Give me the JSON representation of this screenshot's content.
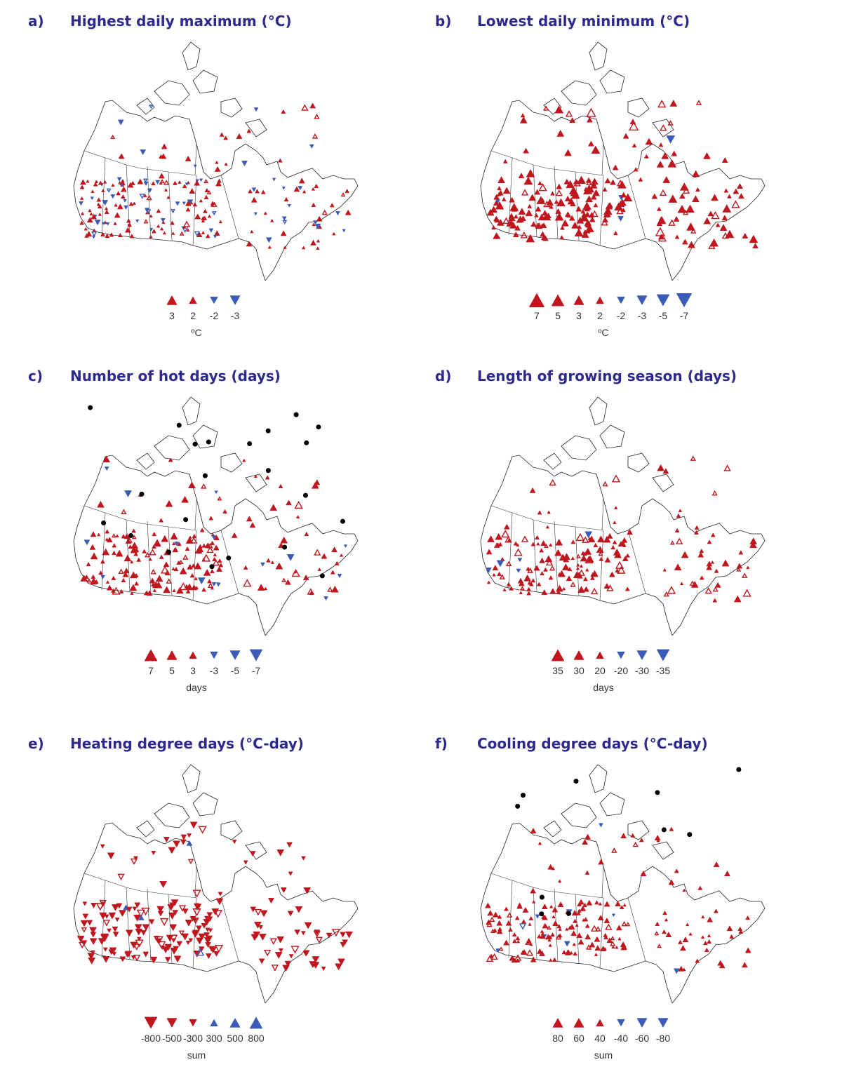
{
  "panels": [
    {
      "letter": "a)",
      "title": "Highest daily maximum (°C)",
      "unit": "ºC",
      "legend": [
        {
          "label": "3",
          "dir": "up",
          "color": "#c0161d",
          "size": 3
        },
        {
          "label": "2",
          "dir": "up",
          "color": "#c0161d",
          "size": 2
        },
        {
          "label": "-2",
          "dir": "down",
          "color": "#3a5bb7",
          "size": 2
        },
        {
          "label": "-3",
          "dir": "down",
          "color": "#3a5bb7",
          "size": 3
        }
      ]
    },
    {
      "letter": "b)",
      "title": "Lowest daily minimum (°C)",
      "unit": "ºC",
      "legend": [
        {
          "label": "7",
          "dir": "up",
          "color": "#c0161d",
          "size": 5
        },
        {
          "label": "5",
          "dir": "up",
          "color": "#c0161d",
          "size": 4
        },
        {
          "label": "3",
          "dir": "up",
          "color": "#c0161d",
          "size": 3
        },
        {
          "label": "2",
          "dir": "up",
          "color": "#c0161d",
          "size": 2
        },
        {
          "label": "-2",
          "dir": "down",
          "color": "#3a5bb7",
          "size": 2
        },
        {
          "label": "-3",
          "dir": "down",
          "color": "#3a5bb7",
          "size": 3
        },
        {
          "label": "-5",
          "dir": "down",
          "color": "#3a5bb7",
          "size": 4
        },
        {
          "label": "-7",
          "dir": "down",
          "color": "#3a5bb7",
          "size": 5
        }
      ]
    },
    {
      "letter": "c)",
      "title": "Number of hot days (days)",
      "unit": "days",
      "legend": [
        {
          "label": "7",
          "dir": "up",
          "color": "#c0161d",
          "size": 4
        },
        {
          "label": "5",
          "dir": "up",
          "color": "#c0161d",
          "size": 3
        },
        {
          "label": "3",
          "dir": "up",
          "color": "#c0161d",
          "size": 2
        },
        {
          "label": "-3",
          "dir": "down",
          "color": "#3a5bb7",
          "size": 2
        },
        {
          "label": "-5",
          "dir": "down",
          "color": "#3a5bb7",
          "size": 3
        },
        {
          "label": "-7",
          "dir": "down",
          "color": "#3a5bb7",
          "size": 4
        }
      ]
    },
    {
      "letter": "d)",
      "title": "Length of growing season (days)",
      "unit": "days",
      "legend": [
        {
          "label": "35",
          "dir": "up",
          "color": "#c0161d",
          "size": 4
        },
        {
          "label": "30",
          "dir": "up",
          "color": "#c0161d",
          "size": 3
        },
        {
          "label": "20",
          "dir": "up",
          "color": "#c0161d",
          "size": 2
        },
        {
          "label": "-20",
          "dir": "down",
          "color": "#3a5bb7",
          "size": 2
        },
        {
          "label": "-30",
          "dir": "down",
          "color": "#3a5bb7",
          "size": 3
        },
        {
          "label": "-35",
          "dir": "down",
          "color": "#3a5bb7",
          "size": 4
        }
      ]
    },
    {
      "letter": "e)",
      "title": "Heating degree days (°C-day)",
      "unit": "sum",
      "legend": [
        {
          "label": "-800",
          "dir": "down",
          "color": "#c0161d",
          "size": 4
        },
        {
          "label": "-500",
          "dir": "down",
          "color": "#c0161d",
          "size": 3
        },
        {
          "label": "-300",
          "dir": "down",
          "color": "#c0161d",
          "size": 2
        },
        {
          "label": "300",
          "dir": "up",
          "color": "#3a5bb7",
          "size": 2
        },
        {
          "label": "500",
          "dir": "up",
          "color": "#3a5bb7",
          "size": 3
        },
        {
          "label": "800",
          "dir": "up",
          "color": "#3a5bb7",
          "size": 4
        }
      ]
    },
    {
      "letter": "f)",
      "title": "Cooling degree days (°C-day)",
      "unit": "sum",
      "legend": [
        {
          "label": "80",
          "dir": "up",
          "color": "#c0161d",
          "size": 3
        },
        {
          "label": "60",
          "dir": "up",
          "color": "#c0161d",
          "size": 3
        },
        {
          "label": "40",
          "dir": "up",
          "color": "#c0161d",
          "size": 2
        },
        {
          "label": "-40",
          "dir": "down",
          "color": "#3a5bb7",
          "size": 2
        },
        {
          "label": "-60",
          "dir": "down",
          "color": "#3a5bb7",
          "size": 3
        },
        {
          "label": "-80",
          "dir": "down",
          "color": "#3a5bb7",
          "size": 3
        }
      ]
    }
  ],
  "colors": {
    "increase_red": "#c0161d",
    "decrease_blue": "#3a5bb7",
    "title_navy": "#2e2a8c",
    "no_data_black": "#000000"
  }
}
